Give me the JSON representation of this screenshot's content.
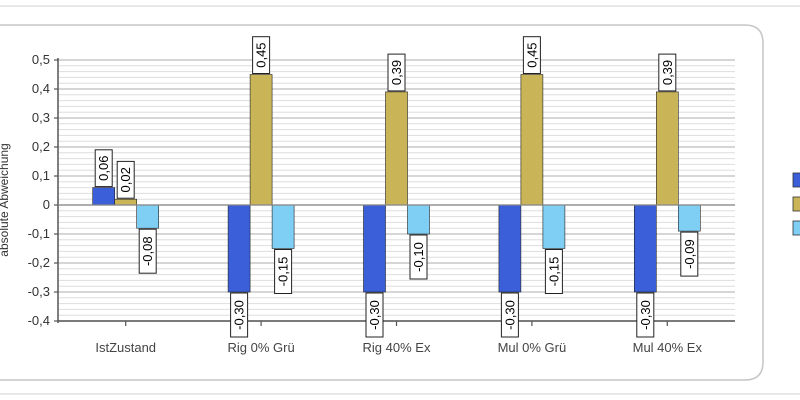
{
  "chart_data": {
    "type": "bar",
    "ylabel": "absolute Abweichung",
    "ylim": [
      -0.4,
      0.5
    ],
    "yticks": [
      0.5,
      0.4,
      0.3,
      0.2,
      0.1,
      0,
      -0.1,
      -0.2,
      -0.3,
      -0.4
    ],
    "ytick_labels": [
      "0,5",
      "0,4",
      "0,3",
      "0,2",
      "0,1",
      "0",
      "-0,1",
      "-0,2",
      "-0,3",
      "-0,4"
    ],
    "grid": true,
    "legend": "right",
    "categories": [
      "IstZustand",
      "Rig 0% Grü",
      "Rig 40% Ex",
      "Mul 0% Grü",
      "Mul 40% Ex"
    ],
    "series": [
      {
        "values": [
          0.06,
          -0.3,
          -0.3,
          -0.3,
          -0.3
        ],
        "labels": [
          "0,06",
          "-0,30",
          "-0,30",
          "-0,30",
          "-0,30"
        ],
        "color": "#3a5fd9"
      },
      {
        "values": [
          0.02,
          0.45,
          0.39,
          0.45,
          0.39
        ],
        "labels": [
          "0,02",
          "0,45",
          "0,39",
          "0,45",
          "0,39"
        ],
        "color": "#c9b458"
      },
      {
        "values": [
          -0.08,
          -0.15,
          -0.1,
          -0.15,
          -0.09
        ],
        "labels": [
          "-0,08",
          "-0,15",
          "-0,10",
          "-0,15",
          "-0,09"
        ],
        "color": "#7fcff5"
      }
    ]
  }
}
